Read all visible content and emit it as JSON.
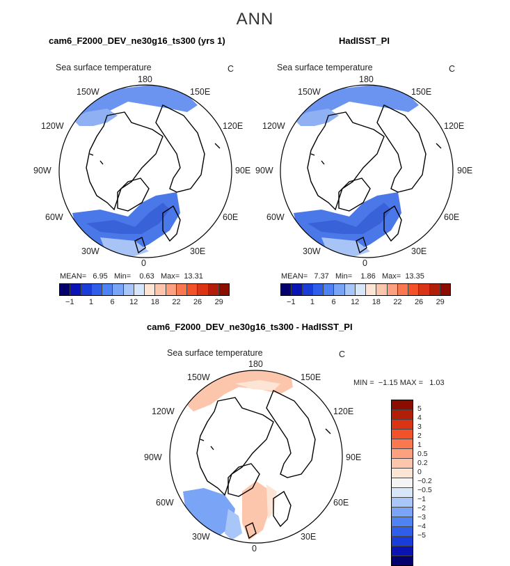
{
  "season": "ANN",
  "panels": [
    {
      "title": "cam6_F2000_DEV_ne30g16_ts300 (yrs 1)",
      "variable": "Sea surface temperature",
      "units": "C",
      "mean_label": "MEAN=",
      "mean": "6.95",
      "min_label": "Min=",
      "min": "0.63",
      "max_label": "Max=",
      "max": "13.31"
    },
    {
      "title": "HadISST_PI",
      "variable": "Sea surface temperature",
      "units": "C",
      "mean_label": "MEAN=",
      "mean": "7.37",
      "min_label": "Min=",
      "min": "1.86",
      "max_label": "Max=",
      "max": "13.35"
    }
  ],
  "diff_panel": {
    "title": "cam6_F2000_DEV_ne30g16_ts300 - HadISST_PI",
    "variable": "Sea surface temperature",
    "units": "C",
    "min_label": "MIN =",
    "min": "−1.15",
    "max_label": "MAX =",
    "max": "1.03"
  },
  "lon_labels": {
    "top": "180",
    "bottom": "0",
    "upper_left": "150W",
    "upper_right": "150E",
    "mid_upper_left": "120W",
    "mid_upper_right": "120E",
    "left": "90W",
    "right": "90E",
    "mid_lower_left": "60W",
    "mid_lower_right": "60E",
    "lower_left": "30W",
    "lower_right": "30E"
  },
  "colorbar": {
    "colors": [
      "#04006e",
      "#0a14b4",
      "#1a3cd8",
      "#2f5fea",
      "#4f82f2",
      "#7aa5f6",
      "#a9c6f8",
      "#d8e6fa",
      "#fde5d6",
      "#fcc6ac",
      "#fca080",
      "#f9784f",
      "#f2512a",
      "#da3315",
      "#b31e08",
      "#8a0d00"
    ],
    "ticks": [
      "−1",
      "1",
      "6",
      "12",
      "18",
      "22",
      "26",
      "29"
    ]
  },
  "diff_colorbar": {
    "colors": [
      "#8a0d00",
      "#b31e08",
      "#da3315",
      "#f2512a",
      "#f9784f",
      "#fca080",
      "#fcc6ac",
      "#fde5d6",
      "#f4f4f4",
      "#d8e6fa",
      "#a9c6f8",
      "#7aa5f6",
      "#4f82f2",
      "#2f5fea",
      "#1a3cd8",
      "#0a14b4",
      "#04006e"
    ],
    "ticks": [
      "5",
      "4",
      "3",
      "2",
      "1",
      "0.5",
      "0.2",
      "0",
      "−0.2",
      "−0.5",
      "−1",
      "−2",
      "−3",
      "−4",
      "−5"
    ]
  },
  "map_colors": {
    "warm_pacific_1": "#6b94f0",
    "warm_pacific_2": "#8fb1f4",
    "atlantic_mid": "#4a78e8",
    "atlantic_cold": "#3a62d8",
    "atlantic_warm": "#a8c4f7",
    "diff_pos_1": "#fcc6ac",
    "diff_pos_2": "#fde5d6",
    "diff_neg_1": "#7aa5f6",
    "diff_neg_2": "#a9c6f8"
  }
}
